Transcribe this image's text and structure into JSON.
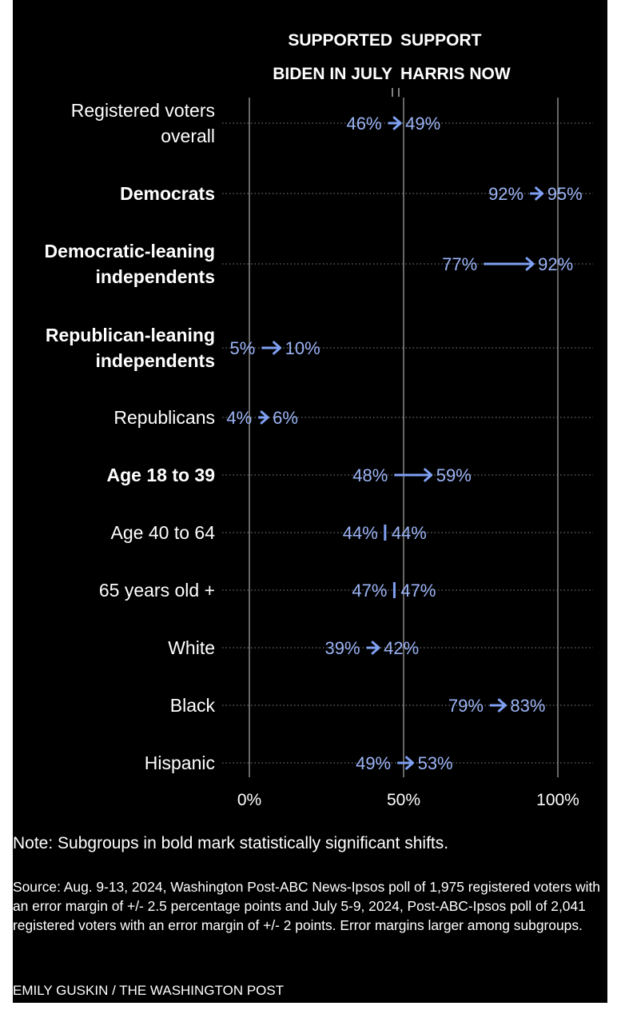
{
  "chart_data": {
    "type": "dot-arrow",
    "column_headers": {
      "before": [
        "SUPPORTED",
        "BIDEN IN JULY"
      ],
      "after": [
        "SUPPORT",
        "HARRIS NOW"
      ]
    },
    "x_ticks": [
      {
        "value": 0,
        "label": "0%"
      },
      {
        "value": 50,
        "label": "50%"
      },
      {
        "value": 100,
        "label": "100%"
      }
    ],
    "xlim": [
      0,
      100
    ],
    "series_names": [
      "Supported Biden in July",
      "Support Harris now"
    ],
    "rows": [
      {
        "label": [
          "Registered voters",
          "overall"
        ],
        "bold": false,
        "before": 46,
        "after": 49,
        "before_label": "46%",
        "after_label": "49%"
      },
      {
        "label": [
          "Democrats"
        ],
        "bold": true,
        "before": 92,
        "after": 95,
        "before_label": "92%",
        "after_label": "95%"
      },
      {
        "label": [
          "Democratic-leaning",
          "independents"
        ],
        "bold": true,
        "before": 77,
        "after": 92,
        "before_label": "77%",
        "after_label": "92%"
      },
      {
        "label": [
          "Republican-leaning",
          "independents"
        ],
        "bold": true,
        "before": 5,
        "after": 10,
        "before_label": "5%",
        "after_label": "10%"
      },
      {
        "label": [
          "Republicans"
        ],
        "bold": false,
        "before": 4,
        "after": 6,
        "before_label": "4%",
        "after_label": "6%"
      },
      {
        "label": [
          "Age 18 to 39"
        ],
        "bold": true,
        "before": 48,
        "after": 59,
        "before_label": "48%",
        "after_label": "59%"
      },
      {
        "label": [
          "Age 40 to 64"
        ],
        "bold": false,
        "before": 44,
        "after": 44,
        "before_label": "44%",
        "after_label": "44%"
      },
      {
        "label": [
          "65 years old +"
        ],
        "bold": false,
        "before": 47,
        "after": 47,
        "before_label": "47%",
        "after_label": "47%"
      },
      {
        "label": [
          "White"
        ],
        "bold": false,
        "before": 39,
        "after": 42,
        "before_label": "39%",
        "after_label": "42%"
      },
      {
        "label": [
          "Black"
        ],
        "bold": false,
        "before": 79,
        "after": 83,
        "before_label": "79%",
        "after_label": "83%"
      },
      {
        "label": [
          "Hispanic"
        ],
        "bold": false,
        "before": 49,
        "after": 53,
        "before_label": "49%",
        "after_label": "53%"
      }
    ]
  },
  "colors": {
    "background": "#000000",
    "text": "#ffffff",
    "value": "#9cb4f6",
    "arrow": "#7fa0f2",
    "gridline": "#8a8a8a",
    "row_rule": "#5a5a5a"
  },
  "footer": {
    "note": "Note: Subgroups in bold mark statistically significant shifts.",
    "source": "Source: Aug. 9-13, 2024, Washington Post-ABC News-Ipsos poll of 1,975 registered voters with an error margin of +/- 2.5 percentage points and July 5-9, 2024, Post-ABC-Ipsos poll of 2,041 registered voters with an error margin of +/- 2 points. Error margins larger among subgroups.",
    "credit": "EMILY GUSKIN / THE WASHINGTON POST"
  }
}
